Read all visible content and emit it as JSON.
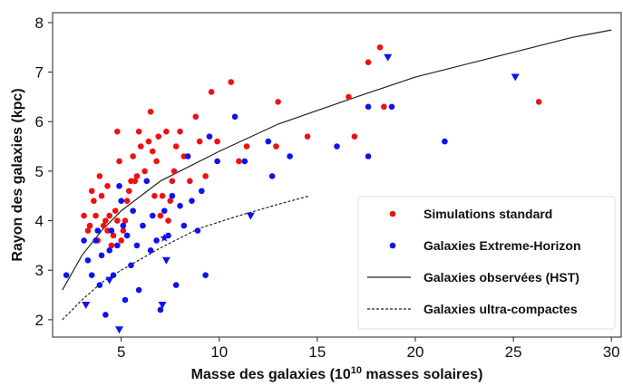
{
  "chart_data": {
    "type": "scatter",
    "xlabel": "Masse des galaxies (10",
    "xlabel_sup": "10",
    "xlabel_tail": " masses solaires)",
    "ylabel": "Rayon des galaxies (kpc)",
    "xlim": [
      1.5,
      30.5
    ],
    "ylim": [
      1.65,
      8.2
    ],
    "x_ticks": [
      5,
      10,
      15,
      20,
      25,
      30
    ],
    "y_ticks": [
      2,
      3,
      4,
      5,
      6,
      7,
      8
    ],
    "x_tick_labels": [
      "5",
      "10",
      "15",
      "20",
      "25",
      "30"
    ],
    "y_tick_labels": [
      "2",
      "3",
      "4",
      "5",
      "6",
      "7",
      "8"
    ],
    "legend_position": "lower-right",
    "colors": {
      "standard": "#ee1111",
      "extreme": "#1111ee",
      "line": "#222222",
      "arrow": "#777777"
    },
    "legend": [
      {
        "label": "Simulations standard",
        "kind": "red-dot"
      },
      {
        "label": "Galaxies Extreme-Horizon",
        "kind": "blue-dot"
      },
      {
        "label": "Galaxies observées (HST)",
        "kind": "solid-line"
      },
      {
        "label": "Galaxies ultra-compactes",
        "kind": "dashed-line"
      }
    ],
    "series": [
      {
        "name": "Simulations standard",
        "marker": "circle",
        "points": [
          [
            3.1,
            4.1
          ],
          [
            3.3,
            3.8
          ],
          [
            3.4,
            3.9
          ],
          [
            3.5,
            4.6
          ],
          [
            3.6,
            4.4
          ],
          [
            3.7,
            4.1
          ],
          [
            3.8,
            3.6
          ],
          [
            3.9,
            4.9
          ],
          [
            4.0,
            4.5
          ],
          [
            4.1,
            3.9
          ],
          [
            4.2,
            4.0
          ],
          [
            4.3,
            4.7
          ],
          [
            4.3,
            3.8
          ],
          [
            4.4,
            4.1
          ],
          [
            4.5,
            3.5
          ],
          [
            4.6,
            3.7
          ],
          [
            4.7,
            4.2
          ],
          [
            4.8,
            5.8
          ],
          [
            4.8,
            4.0
          ],
          [
            4.9,
            5.2
          ],
          [
            5.0,
            3.6
          ],
          [
            5.1,
            3.8
          ],
          [
            5.2,
            4.0
          ],
          [
            5.3,
            4.4
          ],
          [
            5.4,
            4.6
          ],
          [
            5.5,
            4.8
          ],
          [
            5.6,
            5.3
          ],
          [
            5.7,
            4.8
          ],
          [
            5.8,
            4.9
          ],
          [
            5.9,
            5.8
          ],
          [
            6.0,
            5.5
          ],
          [
            6.2,
            5.0
          ],
          [
            6.4,
            5.6
          ],
          [
            6.5,
            6.2
          ],
          [
            6.6,
            5.4
          ],
          [
            6.7,
            4.5
          ],
          [
            6.8,
            5.2
          ],
          [
            6.9,
            5.7
          ],
          [
            7.0,
            4.1
          ],
          [
            7.1,
            4.5
          ],
          [
            7.3,
            5.8
          ],
          [
            7.4,
            4.0
          ],
          [
            7.5,
            4.4
          ],
          [
            7.6,
            4.8
          ],
          [
            7.7,
            5.0
          ],
          [
            7.8,
            5.5
          ],
          [
            8.0,
            5.8
          ],
          [
            8.2,
            5.3
          ],
          [
            8.5,
            4.8
          ],
          [
            8.8,
            6.1
          ],
          [
            9.0,
            5.6
          ],
          [
            9.3,
            4.9
          ],
          [
            9.6,
            6.6
          ],
          [
            9.9,
            5.6
          ],
          [
            10.6,
            6.8
          ],
          [
            11.0,
            5.2
          ],
          [
            11.4,
            5.5
          ],
          [
            12.9,
            5.5
          ],
          [
            13.0,
            6.4
          ],
          [
            14.5,
            5.7
          ],
          [
            16.6,
            6.5
          ],
          [
            16.9,
            5.7
          ],
          [
            17.6,
            7.2
          ],
          [
            18.2,
            7.5
          ],
          [
            18.4,
            6.3
          ],
          [
            26.3,
            6.4
          ]
        ]
      },
      {
        "name": "Galaxies Extreme-Horizon",
        "marker": "circle",
        "points": [
          [
            2.2,
            2.9
          ],
          [
            3.1,
            3.6
          ],
          [
            3.3,
            3.2
          ],
          [
            3.5,
            2.9
          ],
          [
            3.7,
            3.6
          ],
          [
            3.8,
            3.8
          ],
          [
            3.9,
            2.7
          ],
          [
            4.0,
            3.3
          ],
          [
            4.2,
            2.1
          ],
          [
            4.4,
            3.4
          ],
          [
            4.5,
            3.8
          ],
          [
            4.6,
            2.9
          ],
          [
            4.8,
            3.5
          ],
          [
            4.9,
            4.7
          ],
          [
            5.0,
            4.4
          ],
          [
            5.1,
            3.9
          ],
          [
            5.2,
            2.4
          ],
          [
            5.3,
            3.7
          ],
          [
            5.5,
            3.1
          ],
          [
            5.6,
            4.2
          ],
          [
            5.8,
            3.5
          ],
          [
            5.9,
            2.6
          ],
          [
            6.1,
            3.9
          ],
          [
            6.3,
            4.8
          ],
          [
            6.5,
            3.4
          ],
          [
            6.6,
            4.1
          ],
          [
            6.8,
            3.6
          ],
          [
            7.0,
            2.2
          ],
          [
            7.2,
            4.2
          ],
          [
            7.4,
            3.7
          ],
          [
            7.6,
            4.5
          ],
          [
            7.8,
            2.7
          ],
          [
            8.0,
            4.3
          ],
          [
            8.2,
            3.9
          ],
          [
            8.4,
            5.3
          ],
          [
            8.6,
            4.4
          ],
          [
            8.9,
            3.8
          ],
          [
            9.1,
            4.6
          ],
          [
            9.3,
            2.9
          ],
          [
            9.5,
            5.7
          ],
          [
            9.9,
            5.2
          ],
          [
            10.8,
            6.1
          ],
          [
            11.3,
            5.2
          ],
          [
            12.5,
            5.6
          ],
          [
            12.7,
            4.9
          ],
          [
            13.6,
            5.3
          ],
          [
            16.0,
            5.5
          ],
          [
            17.6,
            6.3
          ],
          [
            17.6,
            5.3
          ],
          [
            18.8,
            6.3
          ],
          [
            21.5,
            5.6
          ]
        ]
      },
      {
        "name": "Galaxies Extreme-Horizon (limites)",
        "marker": "triangle",
        "points": [
          [
            3.2,
            2.3
          ],
          [
            4.4,
            2.8
          ],
          [
            4.9,
            1.8
          ],
          [
            7.1,
            2.3
          ],
          [
            7.3,
            3.2
          ],
          [
            11.6,
            4.1
          ],
          [
            18.6,
            7.3
          ],
          [
            25.1,
            6.9
          ]
        ]
      },
      {
        "name": "Galaxies Extreme-Horizon (étoile)",
        "marker": "star",
        "points": [
          [
            7.2,
            3.65
          ]
        ]
      },
      {
        "name": "Galaxies observées (HST)",
        "marker": "line-solid",
        "points": [
          [
            2,
            2.6
          ],
          [
            3,
            3.3
          ],
          [
            4,
            3.8
          ],
          [
            5,
            4.2
          ],
          [
            7,
            4.8
          ],
          [
            10,
            5.4
          ],
          [
            13,
            5.95
          ],
          [
            17,
            6.5
          ],
          [
            20,
            6.9
          ],
          [
            24,
            7.3
          ],
          [
            28,
            7.7
          ],
          [
            30,
            7.85
          ]
        ]
      },
      {
        "name": "Galaxies ultra-compactes",
        "marker": "line-dashed",
        "points": [
          [
            2,
            2.0
          ],
          [
            3,
            2.4
          ],
          [
            4,
            2.75
          ],
          [
            5,
            3.0
          ],
          [
            7,
            3.45
          ],
          [
            9,
            3.85
          ],
          [
            11,
            4.1
          ],
          [
            13,
            4.33
          ],
          [
            14.6,
            4.5
          ]
        ]
      }
    ],
    "arrows": []
  }
}
